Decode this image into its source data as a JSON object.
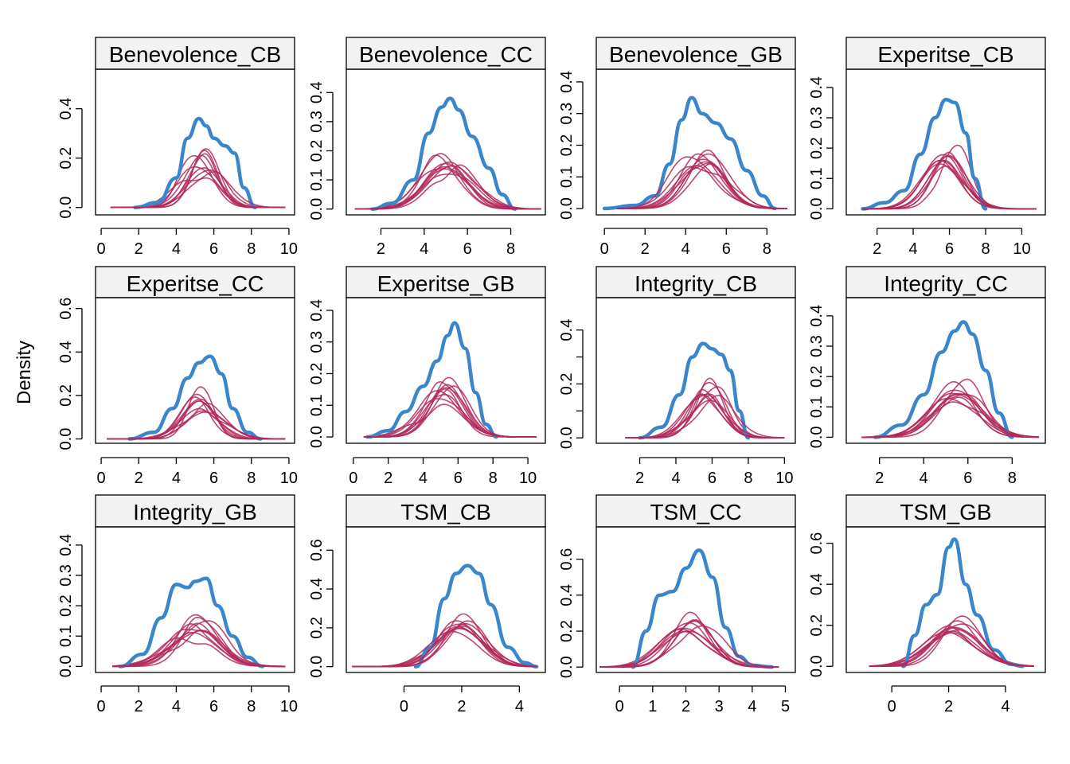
{
  "ylabel": "Density",
  "colors": {
    "observed": "#3a86cc",
    "simulated": "#b3285a",
    "strip_bg": "#f2f2f2",
    "frame": "#000000"
  },
  "chart_data": [
    {
      "type": "line",
      "title": "Benevolence_CB",
      "xlim": [
        -0.3,
        10.3
      ],
      "ylim": [
        -0.03,
        0.56
      ],
      "xticks": [
        0,
        2,
        4,
        6,
        8,
        10
      ],
      "yticks": [
        0.0,
        0.2,
        0.4
      ],
      "ytick_labels": [
        "0.0",
        "0.2",
        "0.4"
      ],
      "yminor": [],
      "observed": {
        "x": [
          1.8,
          3,
          4,
          4.6,
          5.2,
          5.6,
          6,
          6.6,
          7.1,
          7.6,
          8.2
        ],
        "y": [
          0.0,
          0.02,
          0.12,
          0.28,
          0.36,
          0.33,
          0.28,
          0.25,
          0.22,
          0.08,
          0.0
        ]
      },
      "sim_mode": [
        5.4,
        5.2,
        5.5,
        5.0,
        5.6,
        5.3,
        5.8,
        5.1,
        5.5,
        5.6
      ],
      "sim_sd": [
        0.8,
        1.0,
        0.9,
        1.1,
        0.75,
        0.95,
        1.05,
        0.85,
        0.7,
        1.0
      ],
      "sim_xrange": [
        0.5,
        9.8
      ]
    },
    {
      "type": "line",
      "title": "Benevolence_CC",
      "xlim": [
        0.4,
        9.6
      ],
      "ylim": [
        -0.02,
        0.48
      ],
      "xticks": [
        2,
        4,
        6,
        8
      ],
      "yticks": [
        0.0,
        0.1,
        0.2,
        0.3,
        0.4
      ],
      "ytick_labels": [
        "0.0",
        "0.1",
        "0.2",
        "0.3",
        "0.4"
      ],
      "yminor": [],
      "observed": {
        "x": [
          1.6,
          2.5,
          3.5,
          4.2,
          4.8,
          5.2,
          5.6,
          6.2,
          7,
          7.6,
          8.2
        ],
        "y": [
          0.0,
          0.02,
          0.1,
          0.26,
          0.35,
          0.38,
          0.34,
          0.25,
          0.14,
          0.05,
          0.0
        ]
      },
      "sim_mode": [
        5.0,
        5.2,
        4.8,
        5.3,
        5.1,
        4.9,
        5.4,
        5.0,
        5.2,
        4.7
      ],
      "sim_sd": [
        1.0,
        1.05,
        0.9,
        1.1,
        0.95,
        1.15,
        1.0,
        0.9,
        1.2,
        1.0
      ],
      "sim_xrange": [
        0.8,
        9.4
      ]
    },
    {
      "type": "line",
      "title": "Benevolence_GB",
      "xlim": [
        -0.4,
        9.4
      ],
      "ylim": [
        -0.02,
        0.44
      ],
      "xticks": [
        0,
        2,
        4,
        6,
        8
      ],
      "yticks": [
        0.0,
        0.1,
        0.2,
        0.3,
        0.4
      ],
      "ytick_labels": [
        "0.0",
        "0.1",
        "0.2",
        "0.3",
        "0.4"
      ],
      "yminor": [],
      "observed": {
        "x": [
          0,
          1.5,
          2.5,
          3.2,
          3.8,
          4.3,
          4.8,
          5.5,
          6.2,
          7,
          7.8,
          8.4
        ],
        "y": [
          0.0,
          0.01,
          0.04,
          0.14,
          0.28,
          0.35,
          0.3,
          0.27,
          0.22,
          0.12,
          0.04,
          0.0
        ]
      },
      "sim_mode": [
        4.8,
        4.7,
        5.0,
        4.6,
        5.2,
        4.9,
        4.5,
        5.0,
        4.8,
        5.3
      ],
      "sim_sd": [
        1.0,
        1.1,
        0.95,
        1.2,
        1.05,
        1.0,
        1.15,
        0.9,
        1.1,
        1.0
      ],
      "sim_xrange": [
        0.6,
        9.0
      ]
    },
    {
      "type": "line",
      "title": "Experitse_CB",
      "xlim": [
        0.3,
        11.3
      ],
      "ylim": [
        -0.02,
        0.46
      ],
      "xticks": [
        2,
        4,
        6,
        8,
        10
      ],
      "yticks": [
        0.0,
        0.1,
        0.2,
        0.3,
        0.4
      ],
      "ytick_labels": [
        "0.0",
        "0.1",
        "0.2",
        "0.3",
        "0.4"
      ],
      "yminor": [],
      "observed": {
        "x": [
          1.2,
          2.4,
          3.5,
          4.4,
          5.2,
          5.8,
          6.3,
          6.9,
          7.4,
          8.0
        ],
        "y": [
          0.0,
          0.02,
          0.06,
          0.18,
          0.3,
          0.36,
          0.35,
          0.25,
          0.1,
          0.0
        ]
      },
      "sim_mode": [
        5.8,
        5.6,
        6.0,
        5.5,
        6.1,
        5.7,
        5.9,
        6.2,
        5.4,
        5.8
      ],
      "sim_sd": [
        1.0,
        1.1,
        0.9,
        1.05,
        0.95,
        1.2,
        1.0,
        0.85,
        1.1,
        1.0
      ],
      "sim_xrange": [
        1.2,
        10.8
      ]
    },
    {
      "type": "line",
      "title": "Experitse_CC",
      "xlim": [
        -0.3,
        10.3
      ],
      "ylim": [
        -0.02,
        0.65
      ],
      "xticks": [
        0,
        2,
        4,
        6,
        8,
        10
      ],
      "yticks": [
        0.0,
        0.2,
        0.4,
        0.6
      ],
      "ytick_labels": [
        "0.0",
        "0.2",
        "0.4",
        "0.6"
      ],
      "yminor": [],
      "observed": {
        "x": [
          1.5,
          2.8,
          3.8,
          4.6,
          5.2,
          5.8,
          6.4,
          7.0,
          7.8,
          8.5
        ],
        "y": [
          0.0,
          0.03,
          0.14,
          0.28,
          0.35,
          0.38,
          0.3,
          0.14,
          0.03,
          0.0
        ]
      },
      "sim_mode": [
        5.3,
        5.2,
        5.5,
        5.1,
        5.4,
        5.6,
        5.0,
        5.3,
        5.7,
        5.2
      ],
      "sim_sd": [
        1.0,
        0.75,
        1.1,
        0.9,
        1.2,
        1.0,
        0.85,
        0.65,
        1.05,
        0.95
      ],
      "sim_xrange": [
        0.3,
        9.8
      ]
    },
    {
      "type": "line",
      "title": "Experitse_GB",
      "xlim": [
        -0.4,
        11.0
      ],
      "ylim": [
        -0.02,
        0.44
      ],
      "xticks": [
        0,
        2,
        4,
        6,
        8,
        10
      ],
      "yticks": [
        0.0,
        0.1,
        0.2,
        0.3,
        0.4
      ],
      "ytick_labels": [
        "0.0",
        "0.1",
        "0.2",
        "0.3",
        "0.4"
      ],
      "yminor": [],
      "observed": {
        "x": [
          0.8,
          2.0,
          3.0,
          4.0,
          4.8,
          5.4,
          5.8,
          6.4,
          7.0,
          7.6,
          8.2
        ],
        "y": [
          0.0,
          0.02,
          0.08,
          0.16,
          0.24,
          0.32,
          0.36,
          0.28,
          0.14,
          0.04,
          0.0
        ]
      },
      "sim_mode": [
        5.2,
        5.0,
        5.4,
        4.8,
        5.6,
        5.1,
        5.3,
        4.9,
        5.5,
        5.2
      ],
      "sim_sd": [
        1.1,
        1.2,
        1.0,
        1.3,
        1.05,
        0.95,
        1.15,
        1.25,
        1.0,
        1.1
      ],
      "sim_xrange": [
        0.6,
        10.5
      ]
    },
    {
      "type": "line",
      "title": "Integrity_CB",
      "xlim": [
        -0.4,
        10.6
      ],
      "ylim": [
        -0.02,
        0.52
      ],
      "xticks": [
        2,
        4,
        6,
        8,
        10
      ],
      "yticks": [
        0.0,
        0.2,
        0.4
      ],
      "ytick_labels": [
        "0.0",
        "0.2",
        "0.4"
      ],
      "yminor": [
        0.1,
        0.3
      ],
      "observed": {
        "x": [
          2.0,
          3.2,
          4.2,
          4.9,
          5.5,
          6.0,
          6.5,
          7.0,
          7.5,
          8.0
        ],
        "y": [
          0.0,
          0.04,
          0.16,
          0.3,
          0.35,
          0.33,
          0.31,
          0.25,
          0.1,
          0.0
        ]
      },
      "sim_mode": [
        5.6,
        5.8,
        5.4,
        5.9,
        5.7,
        6.0,
        5.5,
        5.8,
        6.1,
        5.6
      ],
      "sim_sd": [
        0.9,
        1.0,
        1.05,
        0.85,
        1.1,
        0.95,
        1.0,
        0.8,
        1.15,
        1.0
      ],
      "sim_xrange": [
        1.2,
        10.0
      ]
    },
    {
      "type": "line",
      "title": "Integrity_CC",
      "xlim": [
        0.5,
        9.5
      ],
      "ylim": [
        -0.02,
        0.46
      ],
      "xticks": [
        2,
        4,
        6,
        8
      ],
      "yticks": [
        0.0,
        0.1,
        0.2,
        0.3,
        0.4
      ],
      "ytick_labels": [
        "0.0",
        "0.1",
        "0.2",
        "0.3",
        "0.4"
      ],
      "yminor": [],
      "observed": {
        "x": [
          1.8,
          3.0,
          4.0,
          4.8,
          5.4,
          5.8,
          6.2,
          6.8,
          7.4,
          8.0
        ],
        "y": [
          0.0,
          0.04,
          0.14,
          0.28,
          0.35,
          0.38,
          0.34,
          0.22,
          0.08,
          0.0
        ]
      },
      "sim_mode": [
        5.4,
        5.6,
        5.3,
        5.7,
        5.5,
        5.2,
        5.8,
        5.4,
        5.6,
        5.3
      ],
      "sim_sd": [
        1.0,
        1.1,
        0.95,
        1.05,
        1.2,
        1.0,
        0.9,
        1.15,
        1.0,
        1.1
      ],
      "sim_xrange": [
        1.2,
        9.2
      ]
    },
    {
      "type": "line",
      "title": "Integrity_GB",
      "xlim": [
        -0.3,
        10.3
      ],
      "ylim": [
        -0.02,
        0.46
      ],
      "xticks": [
        0,
        2,
        4,
        6,
        8,
        10
      ],
      "yticks": [
        0.0,
        0.1,
        0.2,
        0.3,
        0.4
      ],
      "ytick_labels": [
        "0.0",
        "0.1",
        "0.2",
        "0.3",
        "0.4"
      ],
      "yminor": [],
      "observed": {
        "x": [
          1.0,
          2.2,
          3.2,
          4.0,
          4.6,
          5.0,
          5.6,
          6.2,
          7.0,
          7.8,
          8.6
        ],
        "y": [
          0.0,
          0.04,
          0.16,
          0.27,
          0.26,
          0.28,
          0.29,
          0.2,
          0.1,
          0.03,
          0.0
        ]
      },
      "sim_mode": [
        5.0,
        4.8,
        5.2,
        4.7,
        5.3,
        4.9,
        5.1,
        4.6,
        5.4,
        5.0
      ],
      "sim_sd": [
        1.2,
        1.3,
        1.1,
        1.4,
        1.25,
        1.15,
        1.35,
        1.2,
        1.0,
        1.3
      ],
      "sim_xrange": [
        0.6,
        9.8
      ]
    },
    {
      "type": "line",
      "title": "TSM_CB",
      "xlim": [
        -2.0,
        4.9
      ],
      "ylim": [
        -0.03,
        0.72
      ],
      "xticks": [
        0,
        2,
        4
      ],
      "yticks": [
        0.0,
        0.2,
        0.4,
        0.6
      ],
      "ytick_labels": [
        "0.0",
        "0.2",
        "0.4",
        "0.6"
      ],
      "yminor": [],
      "observed": {
        "x": [
          0.4,
          0.9,
          1.4,
          1.8,
          2.2,
          2.6,
          3.0,
          3.6,
          4.2,
          4.6
        ],
        "y": [
          0.0,
          0.1,
          0.35,
          0.48,
          0.52,
          0.48,
          0.32,
          0.1,
          0.02,
          0.0
        ]
      },
      "sim_mode": [
        2.0,
        1.9,
        2.1,
        1.8,
        2.2,
        2.0,
        1.9,
        2.1,
        1.7,
        2.0
      ],
      "sim_sd": [
        0.75,
        0.8,
        0.7,
        0.85,
        0.75,
        0.9,
        0.72,
        0.65,
        0.8,
        0.78
      ],
      "sim_xrange": [
        -1.8,
        4.6
      ]
    },
    {
      "type": "line",
      "title": "TSM_CC",
      "xlim": [
        -0.7,
        5.3
      ],
      "ylim": [
        -0.03,
        0.78
      ],
      "xticks": [
        0,
        1,
        2,
        3,
        4,
        5
      ],
      "yticks": [
        0.0,
        0.2,
        0.4,
        0.6
      ],
      "ytick_labels": [
        "0.0",
        "0.2",
        "0.4",
        "0.6"
      ],
      "yminor": [],
      "observed": {
        "x": [
          0.4,
          0.8,
          1.2,
          1.6,
          2.0,
          2.4,
          2.8,
          3.2,
          3.6,
          4.0,
          4.6
        ],
        "y": [
          0.0,
          0.2,
          0.4,
          0.42,
          0.55,
          0.65,
          0.5,
          0.22,
          0.06,
          0.01,
          0.0
        ]
      },
      "sim_mode": [
        2.1,
        2.0,
        2.2,
        1.9,
        2.3,
        2.1,
        2.0,
        2.2,
        2.4,
        2.0
      ],
      "sim_sd": [
        0.65,
        0.7,
        0.6,
        0.75,
        0.62,
        0.8,
        0.68,
        0.56,
        0.7,
        0.72
      ],
      "sim_xrange": [
        -0.6,
        4.8
      ]
    },
    {
      "type": "line",
      "title": "TSM_GB",
      "xlim": [
        -1.6,
        5.4
      ],
      "ylim": [
        -0.03,
        0.68
      ],
      "xticks": [
        0,
        2,
        4
      ],
      "yticks": [
        0.0,
        0.2,
        0.4,
        0.6
      ],
      "ytick_labels": [
        "0.0",
        "0.2",
        "0.4",
        "0.6"
      ],
      "yminor": [],
      "observed": {
        "x": [
          0.4,
          0.8,
          1.2,
          1.6,
          2.0,
          2.2,
          2.6,
          3.0,
          3.6,
          4.2,
          4.6
        ],
        "y": [
          0.0,
          0.15,
          0.3,
          0.35,
          0.58,
          0.62,
          0.4,
          0.25,
          0.08,
          0.01,
          0.0
        ]
      },
      "sim_mode": [
        2.2,
        2.1,
        2.4,
        2.0,
        2.3,
        2.2,
        2.5,
        2.1,
        2.3,
        2.0
      ],
      "sim_sd": [
        0.8,
        0.85,
        0.75,
        0.9,
        0.8,
        0.95,
        0.7,
        0.85,
        0.8,
        0.9
      ],
      "sim_xrange": [
        -0.8,
        5.0
      ]
    }
  ]
}
